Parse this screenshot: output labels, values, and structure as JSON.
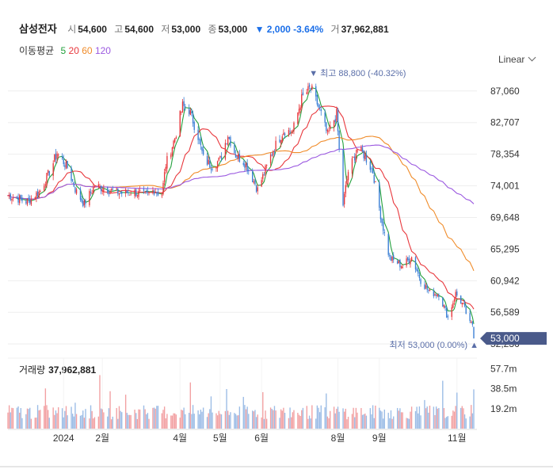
{
  "header": {
    "name": "삼성전자",
    "open_label": "시",
    "open": "54,600",
    "high_label": "고",
    "high": "54,600",
    "low_label": "저",
    "low": "53,000",
    "close_label": "종",
    "close": "53,000",
    "change": "▼ 2,000 -3.64%",
    "volume_label": "거",
    "volume": "37,962,881"
  },
  "ma_legend": {
    "title": "이동평균",
    "items": [
      {
        "label": "5",
        "color": "#22a03c"
      },
      {
        "label": "20",
        "color": "#e8373c"
      },
      {
        "label": "60",
        "color": "#f08c2a"
      },
      {
        "label": "120",
        "color": "#9b59e0"
      }
    ]
  },
  "scale_button": "Linear",
  "volume_panel": {
    "title": "거래량",
    "value": "37,962,881"
  },
  "colors": {
    "up": "#e8373c",
    "down": "#3a7fd5",
    "current_badge": "#4a5a8a",
    "annot": "#5a6ea8"
  },
  "chart_data": {
    "type": "candlestick",
    "y_ticks": [
      "87,060",
      "82,707",
      "78,354",
      "74,001",
      "69,648",
      "65,295",
      "60,942",
      "56,589",
      "52,236"
    ],
    "y_tick_values": [
      87060,
      82707,
      78354,
      74001,
      69648,
      65295,
      60942,
      56589,
      52236
    ],
    "ylim": [
      51600,
      90200
    ],
    "x_ticks": [
      "2024",
      "2월",
      "4월",
      "5월",
      "6월",
      "8월",
      "9월",
      "11월"
    ],
    "x_tick_dates": [
      "2024-01-02",
      "2024-02-01",
      "2024-04-01",
      "2024-05-02",
      "2024-06-03",
      "2024-08-01",
      "2024-09-02",
      "2024-11-01"
    ],
    "date_range": [
      "2023-11-20",
      "2024-11-14"
    ],
    "max_label": "▼ 최고 88,800 (-40.32%)",
    "max": {
      "date": "2024-07-11",
      "value": 88800
    },
    "min_label": "최저 53,000 (0.00%) ▲",
    "min": {
      "date": "2024-11-14",
      "value": 53000
    },
    "current_label": "53,000",
    "current": 53000,
    "close_anchors": [
      [
        "2023-11-20",
        72700
      ],
      [
        "2023-12-05",
        71800
      ],
      [
        "2023-12-15",
        73300
      ],
      [
        "2023-12-22",
        75900
      ],
      [
        "2023-12-28",
        78500
      ],
      [
        "2024-01-05",
        76600
      ],
      [
        "2024-01-12",
        73100
      ],
      [
        "2024-01-18",
        71500
      ],
      [
        "2024-01-26",
        74000
      ],
      [
        "2024-02-05",
        73500
      ],
      [
        "2024-02-15",
        73000
      ],
      [
        "2024-02-26",
        73200
      ],
      [
        "2024-03-05",
        72600
      ],
      [
        "2024-03-12",
        73400
      ],
      [
        "2024-03-18",
        72800
      ],
      [
        "2024-03-21",
        76900
      ],
      [
        "2024-03-28",
        80600
      ],
      [
        "2024-04-03",
        85000
      ],
      [
        "2024-04-08",
        84500
      ],
      [
        "2024-04-15",
        80800
      ],
      [
        "2024-04-19",
        77800
      ],
      [
        "2024-04-25",
        76800
      ],
      [
        "2024-05-02",
        77600
      ],
      [
        "2024-05-08",
        81000
      ],
      [
        "2024-05-14",
        78300
      ],
      [
        "2024-05-22",
        77000
      ],
      [
        "2024-05-31",
        73500
      ],
      [
        "2024-06-05",
        75700
      ],
      [
        "2024-06-12",
        79000
      ],
      [
        "2024-06-20",
        81600
      ],
      [
        "2024-06-27",
        81500
      ],
      [
        "2024-07-04",
        86000
      ],
      [
        "2024-07-11",
        87500
      ],
      [
        "2024-07-18",
        84400
      ],
      [
        "2024-07-24",
        81000
      ],
      [
        "2024-07-31",
        83900
      ],
      [
        "2024-08-05",
        71400
      ],
      [
        "2024-08-09",
        76000
      ],
      [
        "2024-08-16",
        79000
      ],
      [
        "2024-08-21",
        78300
      ],
      [
        "2024-08-28",
        76000
      ],
      [
        "2024-09-04",
        69000
      ],
      [
        "2024-09-10",
        64000
      ],
      [
        "2024-09-20",
        63000
      ],
      [
        "2024-09-27",
        64200
      ],
      [
        "2024-10-04",
        61000
      ],
      [
        "2024-10-11",
        59300
      ],
      [
        "2024-10-18",
        59200
      ],
      [
        "2024-10-25",
        55900
      ],
      [
        "2024-10-31",
        59200
      ],
      [
        "2024-11-06",
        57500
      ],
      [
        "2024-11-11",
        55000
      ],
      [
        "2024-11-13",
        55000
      ],
      [
        "2024-11-14",
        53000
      ]
    ],
    "moving_averages": [
      "5",
      "20",
      "60",
      "120"
    ],
    "volume_ticks": [
      "57.7m",
      "38.5m",
      "19.2m"
    ],
    "volume_tick_values": [
      57700000,
      38500000,
      19200000
    ],
    "last_volume": 37962881
  }
}
